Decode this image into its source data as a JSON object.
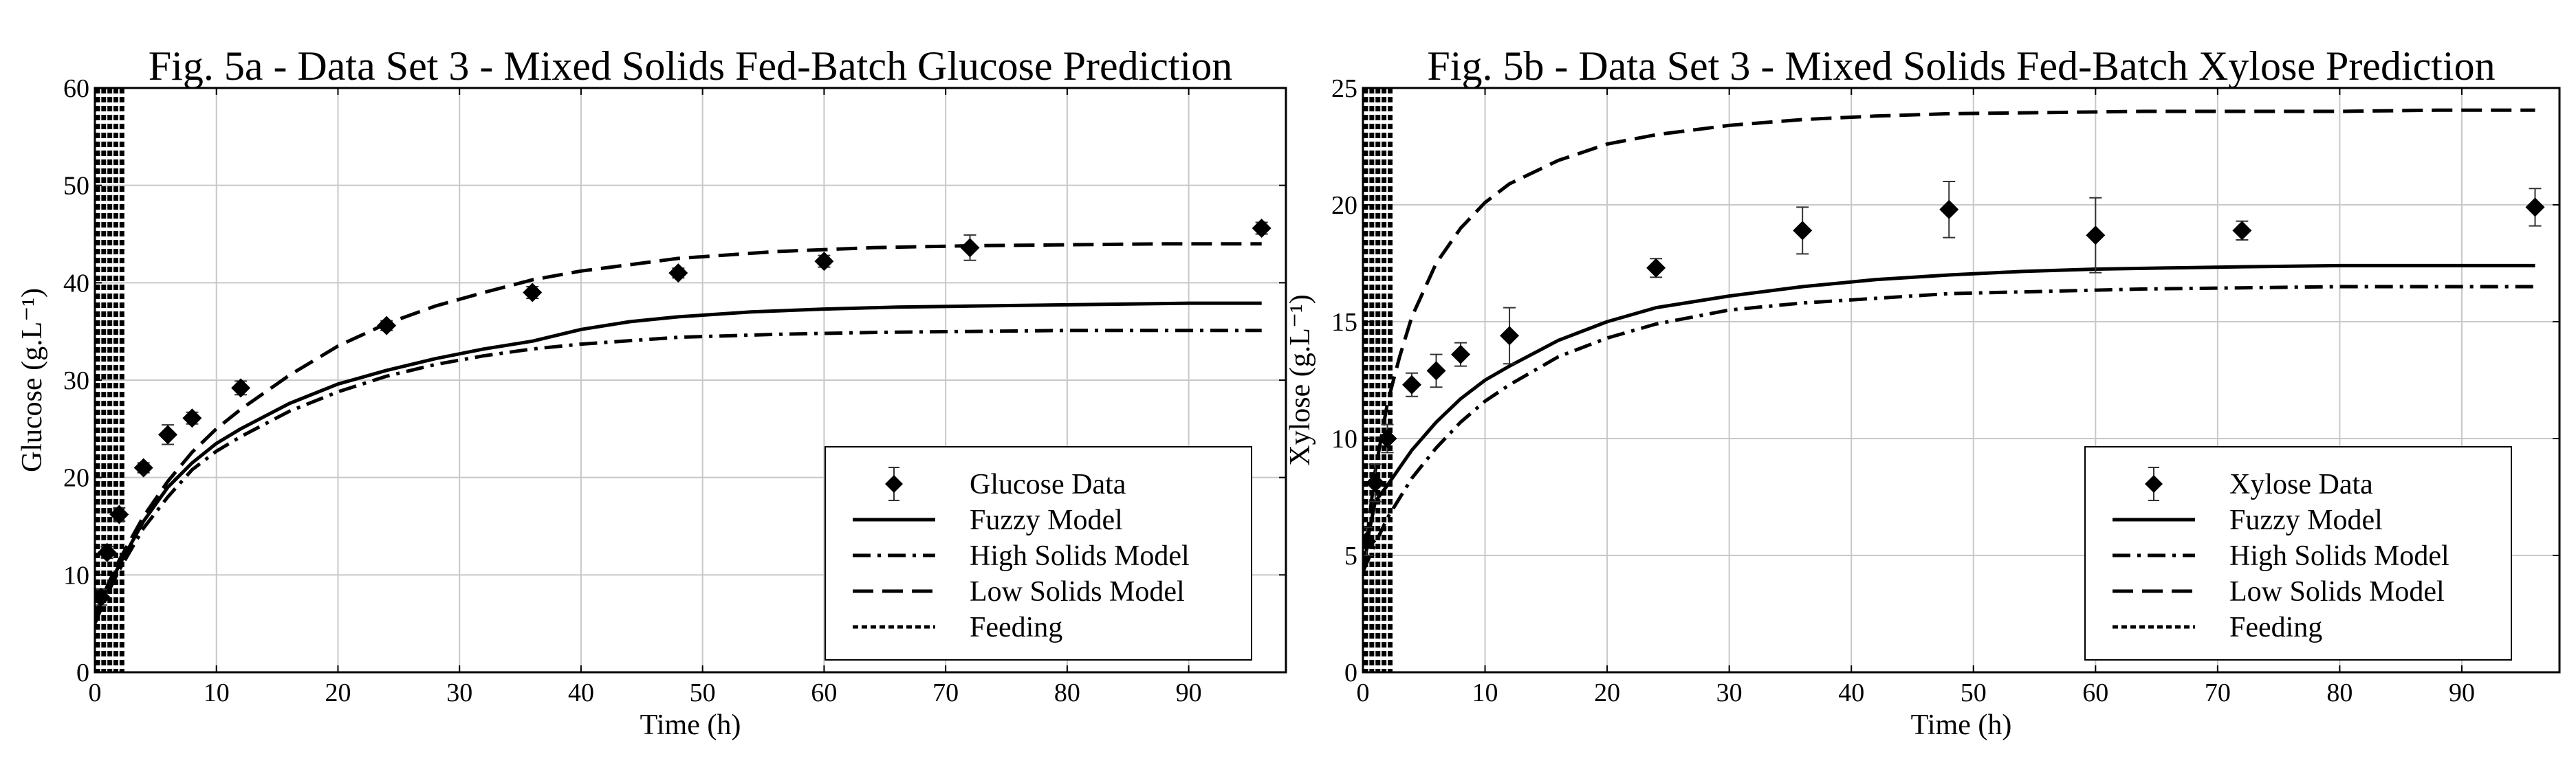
{
  "chart_data": [
    {
      "type": "line",
      "title": "Fig. 5a - Data Set 3 - Mixed Solids Fed-Batch Glucose Prediction",
      "xlabel": "Time (h)",
      "ylabel": "Glucose (g.L⁻¹)",
      "xlim": [
        0,
        98
      ],
      "ylim": [
        0,
        60
      ],
      "xticks": [
        0,
        10,
        20,
        30,
        40,
        50,
        60,
        70,
        80,
        90
      ],
      "yticks": [
        0,
        10,
        20,
        30,
        40,
        50,
        60
      ],
      "grid": true,
      "legend": "bottom-right",
      "legend_entries": [
        "Glucose Data",
        "Fuzzy Model",
        "High Solids Model",
        "Low Solids Model",
        "Feeding"
      ],
      "data_points": {
        "name": "Glucose Data",
        "x": [
          0.5,
          1,
          2,
          4,
          6,
          8,
          12,
          24,
          36,
          48,
          60,
          72,
          96
        ],
        "y": [
          7.7,
          12.3,
          16.2,
          21.0,
          24.4,
          26.1,
          29.2,
          35.6,
          39.0,
          41.0,
          42.2,
          43.6,
          45.6
        ],
        "err": [
          0.8,
          0.6,
          0.7,
          0.5,
          1.0,
          0.6,
          0.7,
          0.5,
          0.6,
          0.5,
          0.6,
          1.3,
          0.6
        ]
      },
      "series": [
        {
          "name": "Fuzzy Model",
          "style": "solid",
          "x": [
            0,
            1,
            2,
            4,
            6,
            8,
            10,
            12,
            16,
            20,
            24,
            28,
            32,
            36,
            40,
            44,
            48,
            54,
            60,
            66,
            72,
            78,
            84,
            90,
            96
          ],
          "y": [
            6.0,
            8.5,
            11.0,
            15.5,
            19.0,
            21.5,
            23.5,
            25.0,
            27.6,
            29.6,
            31.0,
            32.2,
            33.2,
            34.0,
            35.2,
            36.0,
            36.5,
            37.0,
            37.3,
            37.5,
            37.6,
            37.7,
            37.8,
            37.9,
            37.9
          ]
        },
        {
          "name": "High Solids Model",
          "style": "dashdot",
          "x": [
            0,
            1,
            2,
            4,
            6,
            8,
            10,
            12,
            16,
            20,
            24,
            28,
            32,
            36,
            40,
            48,
            56,
            64,
            72,
            80,
            88,
            96
          ],
          "y": [
            5.0,
            8.0,
            10.5,
            14.8,
            18.0,
            20.8,
            22.7,
            24.2,
            26.8,
            28.8,
            30.4,
            31.6,
            32.5,
            33.2,
            33.7,
            34.4,
            34.7,
            34.9,
            35.0,
            35.1,
            35.1,
            35.1
          ]
        },
        {
          "name": "Low Solids Model",
          "style": "dashed",
          "x": [
            0,
            1,
            2,
            4,
            6,
            8,
            10,
            12,
            16,
            20,
            24,
            28,
            32,
            36,
            40,
            48,
            56,
            64,
            72,
            80,
            88,
            96
          ],
          "y": [
            5.5,
            8.8,
            11.5,
            16.0,
            19.6,
            22.6,
            25.0,
            27.0,
            30.5,
            33.5,
            35.8,
            37.6,
            39.0,
            40.3,
            41.2,
            42.5,
            43.2,
            43.6,
            43.8,
            43.9,
            44.0,
            44.0
          ]
        }
      ],
      "feeding_times": [
        0,
        0.5,
        1,
        1.5,
        2.0
      ]
    },
    {
      "type": "line",
      "title": "Fig. 5b - Data Set 3 - Mixed Solids Fed-Batch Xylose Prediction",
      "xlabel": "Time (h)",
      "ylabel": "Xylose (g.L⁻¹)",
      "xlim": [
        0,
        98
      ],
      "ylim": [
        0,
        25
      ],
      "xticks": [
        0,
        10,
        20,
        30,
        40,
        50,
        60,
        70,
        80,
        90
      ],
      "yticks": [
        0,
        5,
        10,
        15,
        20,
        25
      ],
      "grid": true,
      "legend": "bottom-right",
      "legend_entries": [
        "Xylose Data",
        "Fuzzy Model",
        "High Solids Model",
        "Low Solids Model",
        "Feeding"
      ],
      "data_points": {
        "name": "Xylose Data",
        "x": [
          0.3,
          1,
          2,
          4,
          6,
          8,
          12,
          24,
          36,
          48,
          60,
          72,
          96
        ],
        "y": [
          5.6,
          8.1,
          10.0,
          12.3,
          12.9,
          13.6,
          14.4,
          17.3,
          18.9,
          19.8,
          18.7,
          18.9,
          19.9
        ],
        "err": [
          0.6,
          0.8,
          0.6,
          0.5,
          0.7,
          0.5,
          1.2,
          0.4,
          1.0,
          1.2,
          1.6,
          0.4,
          0.8
        ]
      },
      "series": [
        {
          "name": "Fuzzy Model",
          "style": "solid",
          "x": [
            0,
            0.5,
            1,
            2,
            4,
            6,
            8,
            10,
            12,
            16,
            20,
            24,
            30,
            36,
            42,
            48,
            54,
            60,
            66,
            72,
            80,
            88,
            96
          ],
          "y": [
            4.2,
            6.0,
            7.3,
            8.0,
            9.5,
            10.7,
            11.7,
            12.5,
            13.1,
            14.2,
            15.0,
            15.6,
            16.1,
            16.5,
            16.8,
            17.0,
            17.15,
            17.25,
            17.3,
            17.35,
            17.4,
            17.4,
            17.4
          ]
        },
        {
          "name": "High Solids Model",
          "style": "dashdot",
          "x": [
            0,
            1,
            2,
            4,
            6,
            8,
            10,
            12,
            16,
            20,
            24,
            30,
            36,
            42,
            48,
            56,
            64,
            72,
            80,
            88,
            96
          ],
          "y": [
            4.3,
            5.5,
            6.6,
            8.3,
            9.6,
            10.7,
            11.6,
            12.3,
            13.5,
            14.3,
            14.9,
            15.5,
            15.8,
            16.0,
            16.2,
            16.3,
            16.4,
            16.45,
            16.5,
            16.5,
            16.5
          ]
        },
        {
          "name": "Low Solids Model",
          "style": "dashed",
          "x": [
            0,
            0.5,
            1,
            2,
            3,
            4,
            6,
            8,
            10,
            12,
            16,
            20,
            24,
            30,
            36,
            42,
            48,
            56,
            64,
            72,
            80,
            88,
            96
          ],
          "y": [
            4.3,
            6.5,
            8.6,
            11.5,
            13.5,
            15.2,
            17.5,
            19.0,
            20.1,
            20.9,
            21.9,
            22.6,
            23.0,
            23.4,
            23.65,
            23.8,
            23.9,
            23.95,
            24.0,
            24.0,
            24.0,
            24.05,
            24.05
          ]
        }
      ],
      "feeding_times": [
        0,
        0.5,
        1,
        1.5,
        2.0
      ]
    }
  ]
}
